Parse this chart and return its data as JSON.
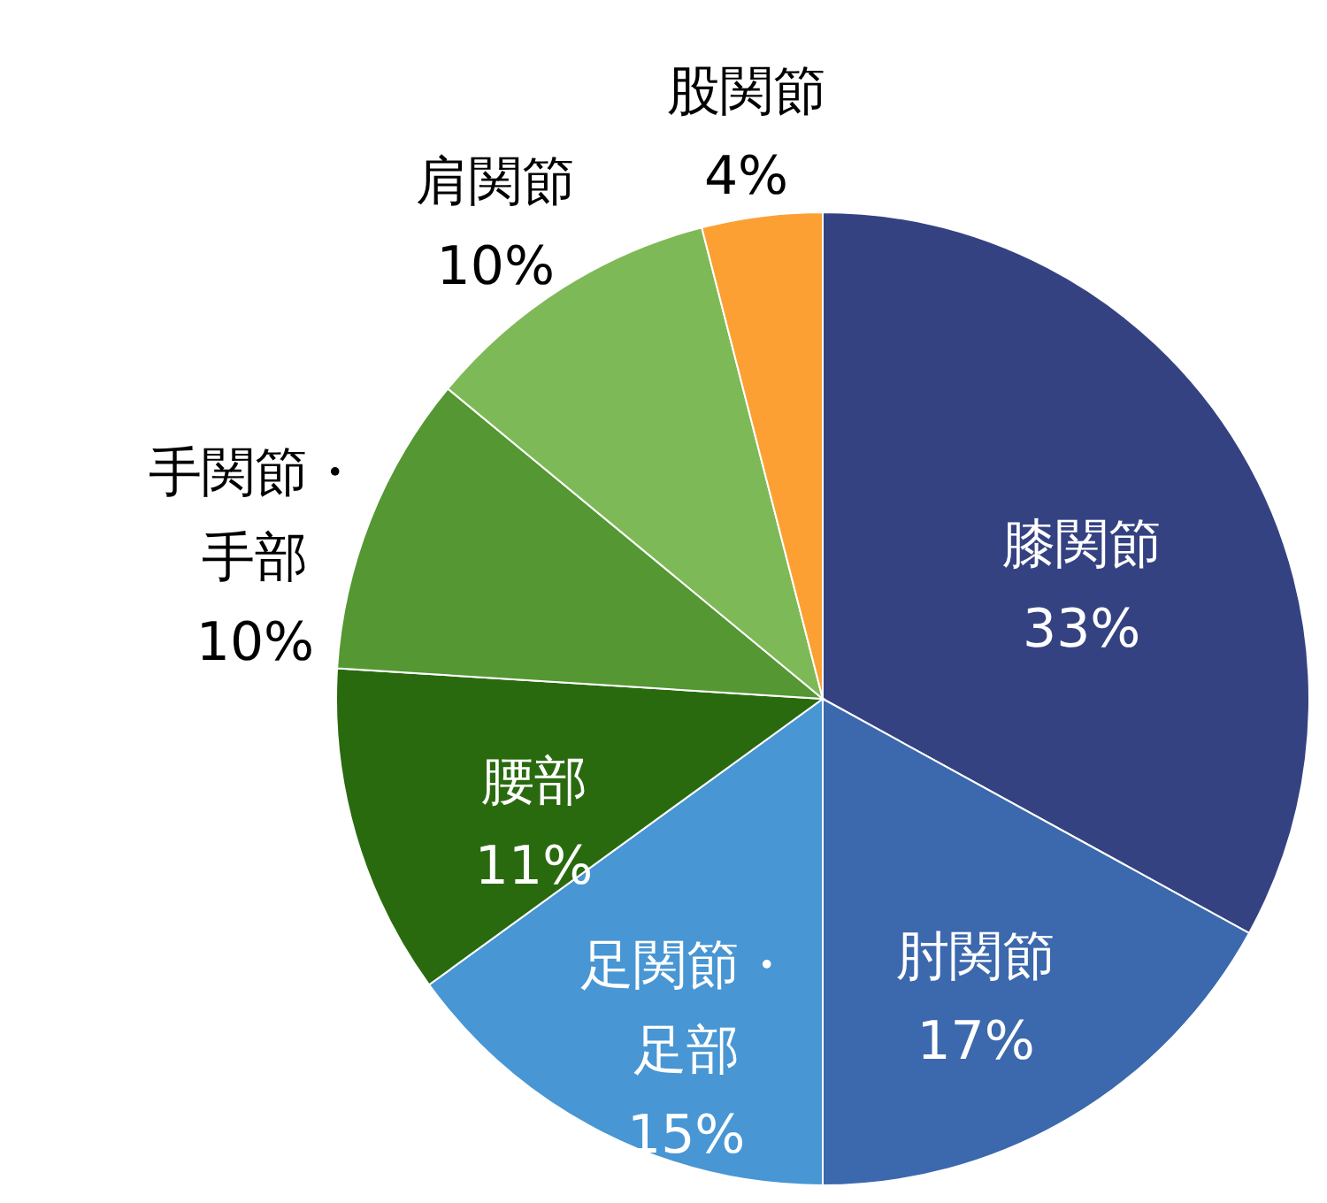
{
  "chart_data": {
    "type": "pie",
    "categories": [
      "膝関節",
      "肘関節",
      "足関節・足部",
      "腰部",
      "手関節・手部",
      "肩関節",
      "股関節"
    ],
    "values": [
      33,
      17,
      15,
      11,
      10,
      10,
      4
    ],
    "value_labels": [
      "33%",
      "17%",
      "15%",
      "11%",
      "10%",
      "10%",
      "4%"
    ],
    "colors": [
      "#354282",
      "#3c68ad",
      "#4896d4",
      "#2a6a0f",
      "#549733",
      "#7eb957",
      "#fca033"
    ]
  }
}
